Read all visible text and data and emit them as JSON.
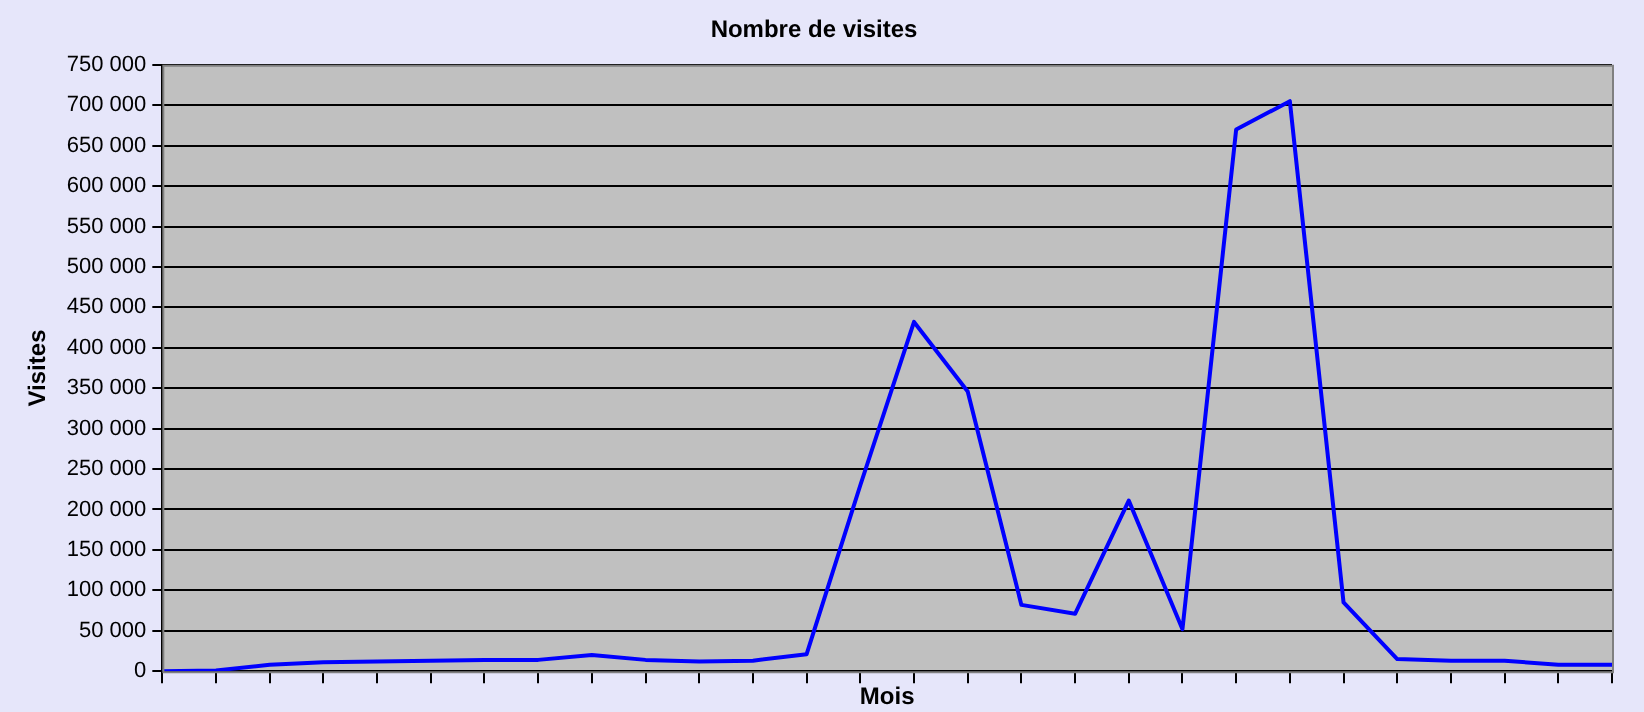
{
  "chart_data": {
    "type": "line",
    "title": "Nombre de visites",
    "xlabel": "Mois",
    "ylabel": "Visites",
    "categories": [
      null,
      null,
      null,
      null,
      null,
      null,
      null,
      null,
      null,
      null,
      null,
      null,
      null,
      null,
      null,
      null,
      null,
      null,
      null,
      null,
      null,
      null,
      null,
      null,
      null,
      null,
      null,
      null
    ],
    "series": [
      {
        "color": "#0000ff",
        "values": [
          0,
          1000,
          8000,
          11000,
          12000,
          13000,
          14000,
          14000,
          20000,
          14000,
          12000,
          13000,
          21000,
          230000,
          432000,
          346000,
          82000,
          71000,
          211000,
          52000,
          670000,
          705000,
          85000,
          15000,
          13000,
          13000,
          8000,
          8000
        ]
      }
    ],
    "ylim": [
      0,
      750000
    ],
    "yticks": [
      {
        "value": 0,
        "label": "0"
      },
      {
        "value": 50000,
        "label": "50 000"
      },
      {
        "value": 100000,
        "label": "100 000"
      },
      {
        "value": 150000,
        "label": "150 000"
      },
      {
        "value": 200000,
        "label": "200 000"
      },
      {
        "value": 250000,
        "label": "250 000"
      },
      {
        "value": 300000,
        "label": "300 000"
      },
      {
        "value": 350000,
        "label": "350 000"
      },
      {
        "value": 400000,
        "label": "400 000"
      },
      {
        "value": 450000,
        "label": "450 000"
      },
      {
        "value": 500000,
        "label": "500 000"
      },
      {
        "value": 550000,
        "label": "550 000"
      },
      {
        "value": 600000,
        "label": "600 000"
      },
      {
        "value": 650000,
        "label": "650 000"
      },
      {
        "value": 700000,
        "label": "700 000"
      },
      {
        "value": 750000,
        "label": "750 000"
      }
    ],
    "grid": "y",
    "legend": false,
    "marker": "none",
    "line_style": "solid",
    "tick_labels": "y"
  }
}
